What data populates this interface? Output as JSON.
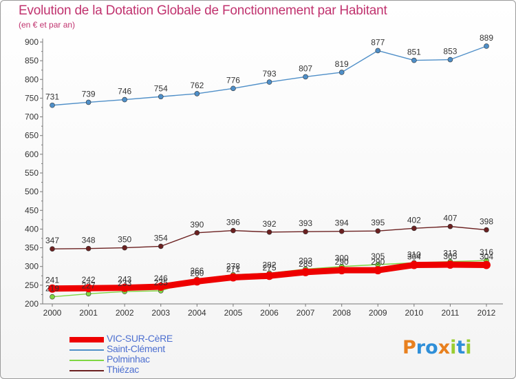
{
  "chart_data": {
    "type": "line",
    "title": "Evolution de la Dotation Globale de Fonctionnement par Habitant",
    "subtitle": "(en € et par an)",
    "xlabel": "",
    "ylabel": "",
    "categories": [
      "2000",
      "2001",
      "2002",
      "2003",
      "2004",
      "2005",
      "2006",
      "2007",
      "2008",
      "2009",
      "2010",
      "2011",
      "2012"
    ],
    "ylim": [
      200,
      900
    ],
    "yticks": [
      200,
      250,
      300,
      350,
      400,
      450,
      500,
      550,
      600,
      650,
      700,
      750,
      800,
      850,
      900
    ],
    "grid": false,
    "legend_position": "bottom-left",
    "series": [
      {
        "name": "VIC-SUR-CèRE",
        "color": "#ee0000",
        "values": [
          241,
          242,
          243,
          246,
          260,
          271,
          275,
          285,
          290,
          290,
          304,
          305,
          304
        ]
      },
      {
        "name": "Saint-Clément",
        "color": "#4f8fc8",
        "values": [
          731,
          739,
          746,
          754,
          762,
          776,
          793,
          807,
          819,
          877,
          851,
          853,
          889
        ]
      },
      {
        "name": "Polminhac",
        "color": "#7ed641",
        "values": [
          219,
          227,
          233,
          235,
          266,
          278,
          282,
          293,
          300,
          305,
          310,
          313,
          316
        ]
      },
      {
        "name": "Thiézac",
        "color": "#6b2020",
        "values": [
          347,
          348,
          350,
          354,
          390,
          396,
          392,
          393,
          394,
          395,
          402,
          407,
          398
        ]
      }
    ]
  },
  "logo": {
    "letters": [
      "P",
      "r",
      "o",
      "x",
      "i",
      "t",
      "i"
    ],
    "colors": [
      "#e8801e",
      "#2f8fd8",
      "#2f8fd8",
      "#e8801e",
      "#9acd32",
      "#2f8fd8",
      "#9acd32"
    ]
  }
}
